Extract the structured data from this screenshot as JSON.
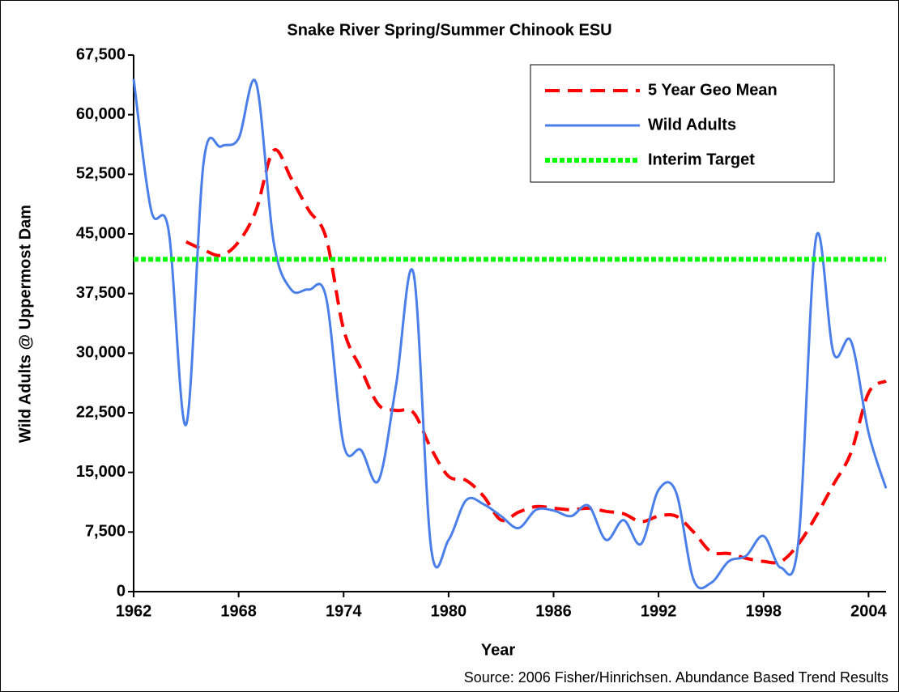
{
  "chart_data": {
    "type": "line",
    "title": "Snake River Spring/Summer Chinook ESU",
    "x_label": "Year",
    "y_label": "Wild Adults @ Uppermost Dam",
    "source": "Source:  2006 Fisher/Hinrichsen.  Abundance Based Trend Results",
    "x": [
      1962,
      1963,
      1964,
      1965,
      1966,
      1967,
      1968,
      1969,
      1970,
      1971,
      1972,
      1973,
      1974,
      1975,
      1976,
      1977,
      1978,
      1979,
      1980,
      1981,
      1982,
      1983,
      1984,
      1985,
      1986,
      1987,
      1988,
      1989,
      1990,
      1991,
      1992,
      1993,
      1994,
      1995,
      1996,
      1997,
      1998,
      1999,
      2000,
      2001,
      2002,
      2003,
      2004,
      2005
    ],
    "series": [
      {
        "name": "5 Year Geo Mean",
        "color": "#ff0000",
        "style": "dashed",
        "values": [
          null,
          null,
          null,
          44000,
          43000,
          42300,
          44000,
          48000,
          55500,
          52000,
          48000,
          44500,
          33000,
          28000,
          23500,
          22800,
          22500,
          18000,
          14500,
          14000,
          12000,
          9000,
          10000,
          10700,
          10500,
          10300,
          10500,
          10100,
          9800,
          8800,
          9500,
          9500,
          7500,
          5000,
          4800,
          4200,
          3800,
          3800,
          6000,
          9500,
          13500,
          17500,
          25000,
          26500
        ]
      },
      {
        "name": "Wild Adults",
        "color": "#4a7ee8",
        "style": "solid",
        "values": [
          64500,
          48000,
          45400,
          21000,
          54000,
          56000,
          57000,
          64000,
          44000,
          38000,
          38000,
          37000,
          18500,
          17800,
          14000,
          26000,
          40000,
          5500,
          6500,
          11500,
          11000,
          9500,
          8000,
          10300,
          10200,
          9500,
          10800,
          6500,
          9000,
          6000,
          12800,
          12500,
          1500,
          1100,
          3800,
          4500,
          7000,
          3000,
          6500,
          44500,
          30000,
          31500,
          20000,
          13000
        ]
      },
      {
        "name": "Interim Target",
        "color": "#00ff00",
        "style": "dotted",
        "values": [
          41800,
          41800,
          41800,
          41800,
          41800,
          41800,
          41800,
          41800,
          41800,
          41800,
          41800,
          41800,
          41800,
          41800,
          41800,
          41800,
          41800,
          41800,
          41800,
          41800,
          41800,
          41800,
          41800,
          41800,
          41800,
          41800,
          41800,
          41800,
          41800,
          41800,
          41800,
          41800,
          41800,
          41800,
          41800,
          41800,
          41800,
          41800,
          41800,
          41800,
          41800,
          41800,
          41800,
          41800
        ]
      }
    ],
    "xlim": [
      1962,
      2005
    ],
    "xticks": [
      1962,
      1968,
      1974,
      1980,
      1986,
      1992,
      1998,
      2004
    ],
    "ylim": [
      0,
      67500
    ],
    "yticks": [
      0,
      {
        "value": 7500,
        "label": "7,500"
      },
      {
        "value": 15000,
        "label": "15,000"
      },
      {
        "value": 22500,
        "label": "22,500"
      },
      {
        "value": 30000,
        "label": "30,000"
      },
      {
        "value": 37500,
        "label": "37,500"
      },
      {
        "value": 45000,
        "label": "45,000"
      },
      {
        "value": 52500,
        "label": "52,500"
      },
      {
        "value": 60000,
        "label": "60,000"
      },
      {
        "value": 67500,
        "label": "67,500"
      }
    ],
    "grid": false,
    "legend": "upper right"
  }
}
